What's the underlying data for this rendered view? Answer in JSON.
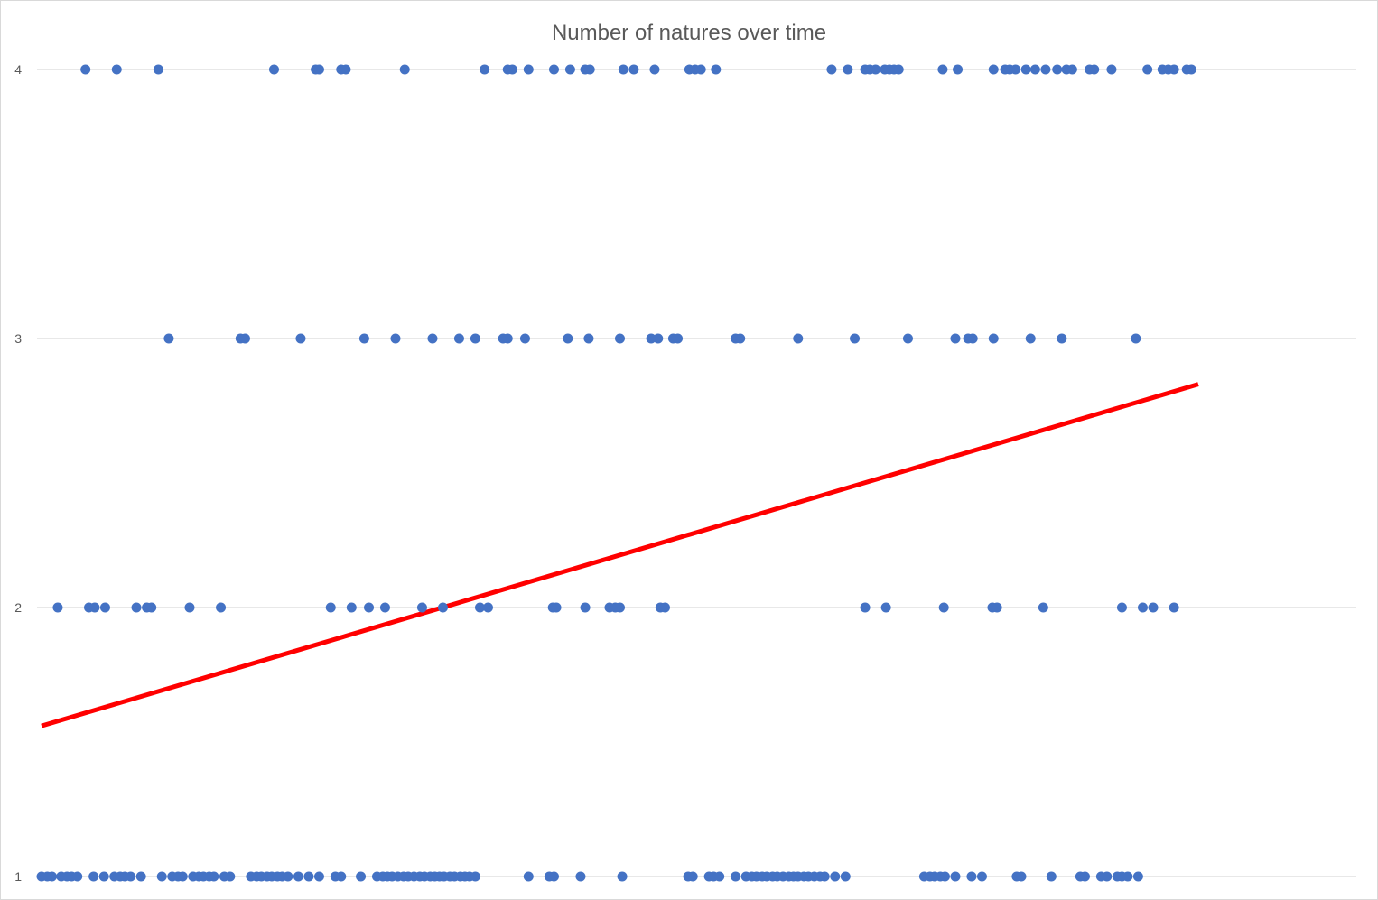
{
  "chart_data": {
    "type": "scatter",
    "title": "Number of natures over time",
    "xlabel": "",
    "ylabel": "",
    "ylim": [
      1,
      4
    ],
    "xlim": [
      0,
      1000
    ],
    "yticks": [
      "1",
      "2",
      "3",
      "4"
    ],
    "grid": true,
    "legend": "none",
    "series": [
      {
        "name": "",
        "color": "#4472c4",
        "x_by_level": {
          "4": [
            38,
            65,
            101,
            201,
            237,
            240,
            259,
            263,
            314,
            383,
            403,
            407,
            421,
            443,
            457,
            470,
            474,
            503,
            512,
            530,
            560,
            565,
            570,
            583,
            683,
            697,
            712,
            716,
            721,
            729,
            733,
            737,
            741,
            779,
            792,
            823,
            833,
            837,
            842,
            851,
            859,
            868,
            878,
            886,
            891,
            906,
            910,
            925,
            956,
            969,
            974,
            979,
            990,
            994
          ],
          "3": [
            110,
            172,
            176,
            224,
            279,
            306,
            338,
            361,
            375,
            399,
            403,
            418,
            455,
            473,
            500,
            527,
            533,
            546,
            550,
            600,
            604,
            654,
            703,
            749,
            790,
            801,
            805,
            823,
            855,
            882,
            946
          ],
          "2": [
            14,
            41,
            46,
            55,
            82,
            91,
            95,
            128,
            155,
            250,
            268,
            283,
            297,
            329,
            347,
            379,
            386,
            442,
            445,
            470,
            491,
            496,
            500,
            535,
            539,
            712,
            730,
            780,
            822,
            826,
            866,
            934,
            952,
            961,
            979
          ],
          "1": [
            0,
            5,
            9,
            17,
            22,
            26,
            31,
            45,
            54,
            63,
            68,
            72,
            77,
            86,
            104,
            113,
            118,
            122,
            131,
            136,
            140,
            145,
            149,
            158,
            163,
            181,
            186,
            190,
            195,
            199,
            204,
            208,
            213,
            222,
            231,
            240,
            254,
            259,
            276,
            290,
            295,
            299,
            303,
            308,
            313,
            317,
            322,
            327,
            331,
            336,
            340,
            344,
            348,
            353,
            357,
            362,
            366,
            370,
            375,
            421,
            439,
            443,
            466,
            502,
            559,
            563,
            577,
            581,
            586,
            600,
            609,
            614,
            618,
            623,
            627,
            632,
            636,
            641,
            646,
            650,
            654,
            659,
            663,
            668,
            673,
            677,
            686,
            695,
            763,
            768,
            772,
            777,
            781,
            790,
            804,
            813,
            843,
            847,
            873,
            898,
            902,
            916,
            921,
            930,
            934,
            939,
            948
          ]
        }
      },
      {
        "name": "",
        "type": "line",
        "color": "#ff0000",
        "x": [
          0,
          1000
        ],
        "values": [
          1.56,
          2.83
        ]
      }
    ]
  }
}
